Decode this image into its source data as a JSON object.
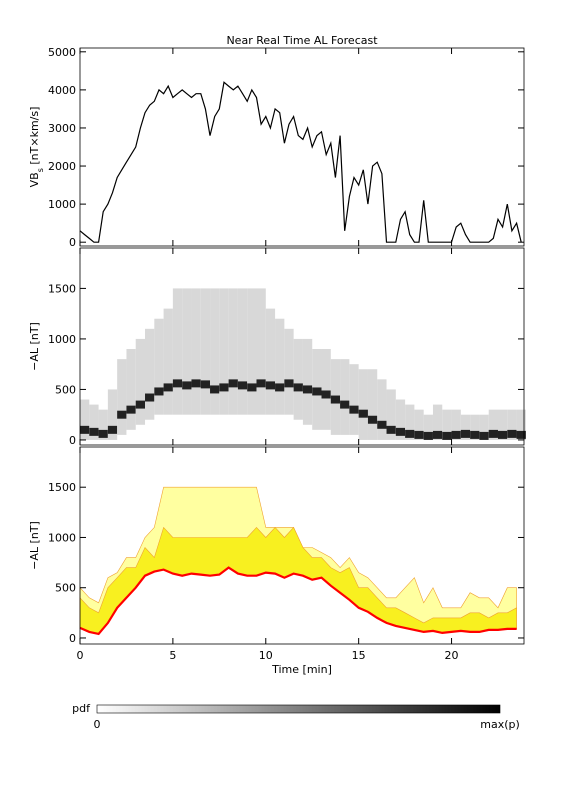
{
  "chart_data": [
    {
      "type": "line",
      "title": "Near Real Time AL Forecast",
      "ylabel_parts": [
        "VB",
        "s",
        " [nT×km/s]"
      ],
      "x": [
        0,
        0.25,
        0.5,
        0.75,
        1,
        1.25,
        1.5,
        1.75,
        2,
        2.25,
        2.5,
        2.75,
        3,
        3.25,
        3.5,
        3.75,
        4,
        4.25,
        4.5,
        4.75,
        5,
        5.25,
        5.5,
        5.75,
        6,
        6.25,
        6.5,
        6.75,
        7,
        7.25,
        7.5,
        7.75,
        8,
        8.25,
        8.5,
        8.75,
        9,
        9.25,
        9.5,
        9.75,
        10,
        10.25,
        10.5,
        10.75,
        11,
        11.25,
        11.5,
        11.75,
        12,
        12.25,
        12.5,
        12.75,
        13,
        13.25,
        13.5,
        13.75,
        14,
        14.25,
        14.5,
        14.75,
        15,
        15.25,
        15.5,
        15.75,
        16,
        16.25,
        16.5,
        16.75,
        17,
        17.25,
        17.5,
        17.75,
        18,
        18.25,
        18.5,
        18.75,
        19,
        19.25,
        19.5,
        19.75,
        20,
        20.25,
        20.5,
        20.75,
        21,
        21.25,
        21.5,
        21.75,
        22,
        22.25,
        22.5,
        22.75,
        23,
        23.25,
        23.5,
        23.75
      ],
      "series": [
        {
          "color": "#000000",
          "values": [
            300,
            200,
            100,
            0,
            0,
            800,
            1000,
            1300,
            1700,
            1900,
            2100,
            2300,
            2500,
            3000,
            3400,
            3600,
            3700,
            4000,
            3900,
            4100,
            3800,
            3900,
            4000,
            3900,
            3800,
            3900,
            3900,
            3500,
            2800,
            3300,
            3500,
            4200,
            4100,
            4000,
            4100,
            3900,
            3700,
            4000,
            3800,
            3100,
            3300,
            3000,
            3500,
            3400,
            2600,
            3100,
            3300,
            2800,
            2700,
            3000,
            2500,
            2800,
            2900,
            2300,
            2600,
            1700,
            2800,
            300,
            1200,
            1700,
            1500,
            1900,
            1000,
            2000,
            2100,
            1800,
            0,
            0,
            0,
            600,
            800,
            200,
            0,
            0,
            1100,
            0,
            0,
            0,
            0,
            0,
            0,
            400,
            500,
            200,
            0,
            0,
            0,
            0,
            0,
            100,
            600,
            400,
            1000,
            300,
            500,
            0
          ]
        }
      ],
      "xlim": [
        0,
        23.9
      ],
      "xticks": [
        0,
        5,
        10,
        15,
        20
      ],
      "ylim": [
        -100,
        5100
      ],
      "yticks": [
        0,
        1000,
        2000,
        3000,
        4000,
        5000
      ]
    },
    {
      "type": "range",
      "ylabel": "−AL [nT]",
      "x": [
        0,
        0.5,
        1,
        1.5,
        2,
        2.5,
        3,
        3.5,
        4,
        4.5,
        5,
        5.5,
        6,
        6.5,
        7,
        7.5,
        8,
        8.5,
        9,
        9.5,
        10,
        10.5,
        11,
        11.5,
        12,
        12.5,
        13,
        13.5,
        14,
        14.5,
        15,
        15.5,
        16,
        16.5,
        17,
        17.5,
        18,
        18.5,
        19,
        19.5,
        20,
        20.5,
        21,
        21.5,
        22,
        22.5,
        23,
        23.5
      ],
      "lower": [
        0,
        0,
        0,
        0,
        50,
        100,
        150,
        200,
        250,
        250,
        250,
        250,
        250,
        250,
        250,
        250,
        250,
        250,
        250,
        250,
        250,
        250,
        250,
        200,
        150,
        100,
        100,
        50,
        50,
        50,
        0,
        0,
        0,
        0,
        0,
        0,
        0,
        0,
        0,
        0,
        0,
        0,
        0,
        0,
        0,
        0,
        0,
        0
      ],
      "median": [
        100,
        80,
        60,
        100,
        250,
        300,
        350,
        420,
        480,
        520,
        560,
        540,
        560,
        550,
        500,
        520,
        560,
        540,
        520,
        560,
        540,
        520,
        560,
        520,
        500,
        480,
        450,
        400,
        350,
        300,
        260,
        200,
        150,
        100,
        80,
        60,
        50,
        40,
        50,
        40,
        50,
        60,
        50,
        40,
        60,
        50,
        60,
        50
      ],
      "upper": [
        400,
        350,
        300,
        500,
        800,
        900,
        1000,
        1100,
        1200,
        1300,
        1500,
        1500,
        1500,
        1500,
        1500,
        1500,
        1500,
        1500,
        1500,
        1500,
        1300,
        1200,
        1100,
        1000,
        1000,
        900,
        900,
        800,
        800,
        750,
        700,
        700,
        600,
        500,
        400,
        350,
        300,
        250,
        350,
        300,
        300,
        250,
        250,
        250,
        300,
        300,
        300,
        300
      ],
      "xlim": [
        0,
        23.9
      ],
      "xticks": [
        0,
        5,
        10,
        15,
        20
      ],
      "ylim": [
        -50,
        1900
      ],
      "yticks": [
        0,
        500,
        1000,
        1500
      ]
    },
    {
      "type": "area",
      "ylabel": "−AL [nT]",
      "xlabel": "Time [min]",
      "x": [
        0,
        0.5,
        1,
        1.5,
        2,
        2.5,
        3,
        3.5,
        4,
        4.5,
        5,
        5.5,
        6,
        6.5,
        7,
        7.5,
        8,
        8.5,
        9,
        9.5,
        10,
        10.5,
        11,
        11.5,
        12,
        12.5,
        13,
        13.5,
        14,
        14.5,
        15,
        15.5,
        16,
        16.5,
        17,
        17.5,
        18,
        18.5,
        19,
        19.5,
        20,
        20.5,
        21,
        21.5,
        22,
        22.5,
        23,
        23.5
      ],
      "series": [
        {
          "color": "#ffffa0",
          "values": [
            500,
            400,
            350,
            600,
            650,
            800,
            800,
            1000,
            1100,
            1500,
            1500,
            1500,
            1500,
            1500,
            1500,
            1500,
            1500,
            1500,
            1500,
            1500,
            1100,
            1100,
            1100,
            1100,
            900,
            900,
            850,
            800,
            700,
            800,
            650,
            600,
            500,
            400,
            400,
            500,
            600,
            350,
            500,
            300,
            300,
            300,
            450,
            400,
            400,
            300,
            500,
            500
          ]
        },
        {
          "color": "#f8f020",
          "values": [
            400,
            300,
            250,
            500,
            600,
            700,
            700,
            900,
            800,
            1100,
            1000,
            1000,
            1000,
            1000,
            1000,
            1000,
            1000,
            1000,
            1000,
            1100,
            1000,
            1100,
            1000,
            1100,
            900,
            800,
            800,
            700,
            650,
            700,
            500,
            500,
            400,
            300,
            300,
            250,
            200,
            150,
            200,
            200,
            200,
            200,
            250,
            250,
            200,
            250,
            250,
            300
          ]
        },
        {
          "color": "#ff0000",
          "values": [
            100,
            60,
            40,
            150,
            300,
            400,
            500,
            620,
            660,
            680,
            640,
            620,
            640,
            630,
            620,
            630,
            700,
            640,
            620,
            620,
            650,
            640,
            600,
            640,
            620,
            580,
            600,
            520,
            450,
            380,
            300,
            260,
            200,
            150,
            120,
            100,
            80,
            60,
            70,
            50,
            60,
            70,
            60,
            60,
            80,
            80,
            90,
            90
          ]
        }
      ],
      "xlim": [
        0,
        23.9
      ],
      "xticks": [
        0,
        5,
        10,
        15,
        20
      ],
      "ylim": [
        -60,
        1900
      ],
      "yticks": [
        0,
        500,
        1000,
        1500
      ]
    }
  ],
  "colorbar": {
    "label": "pdf",
    "min_label": "0",
    "max_label": "max(p)"
  }
}
